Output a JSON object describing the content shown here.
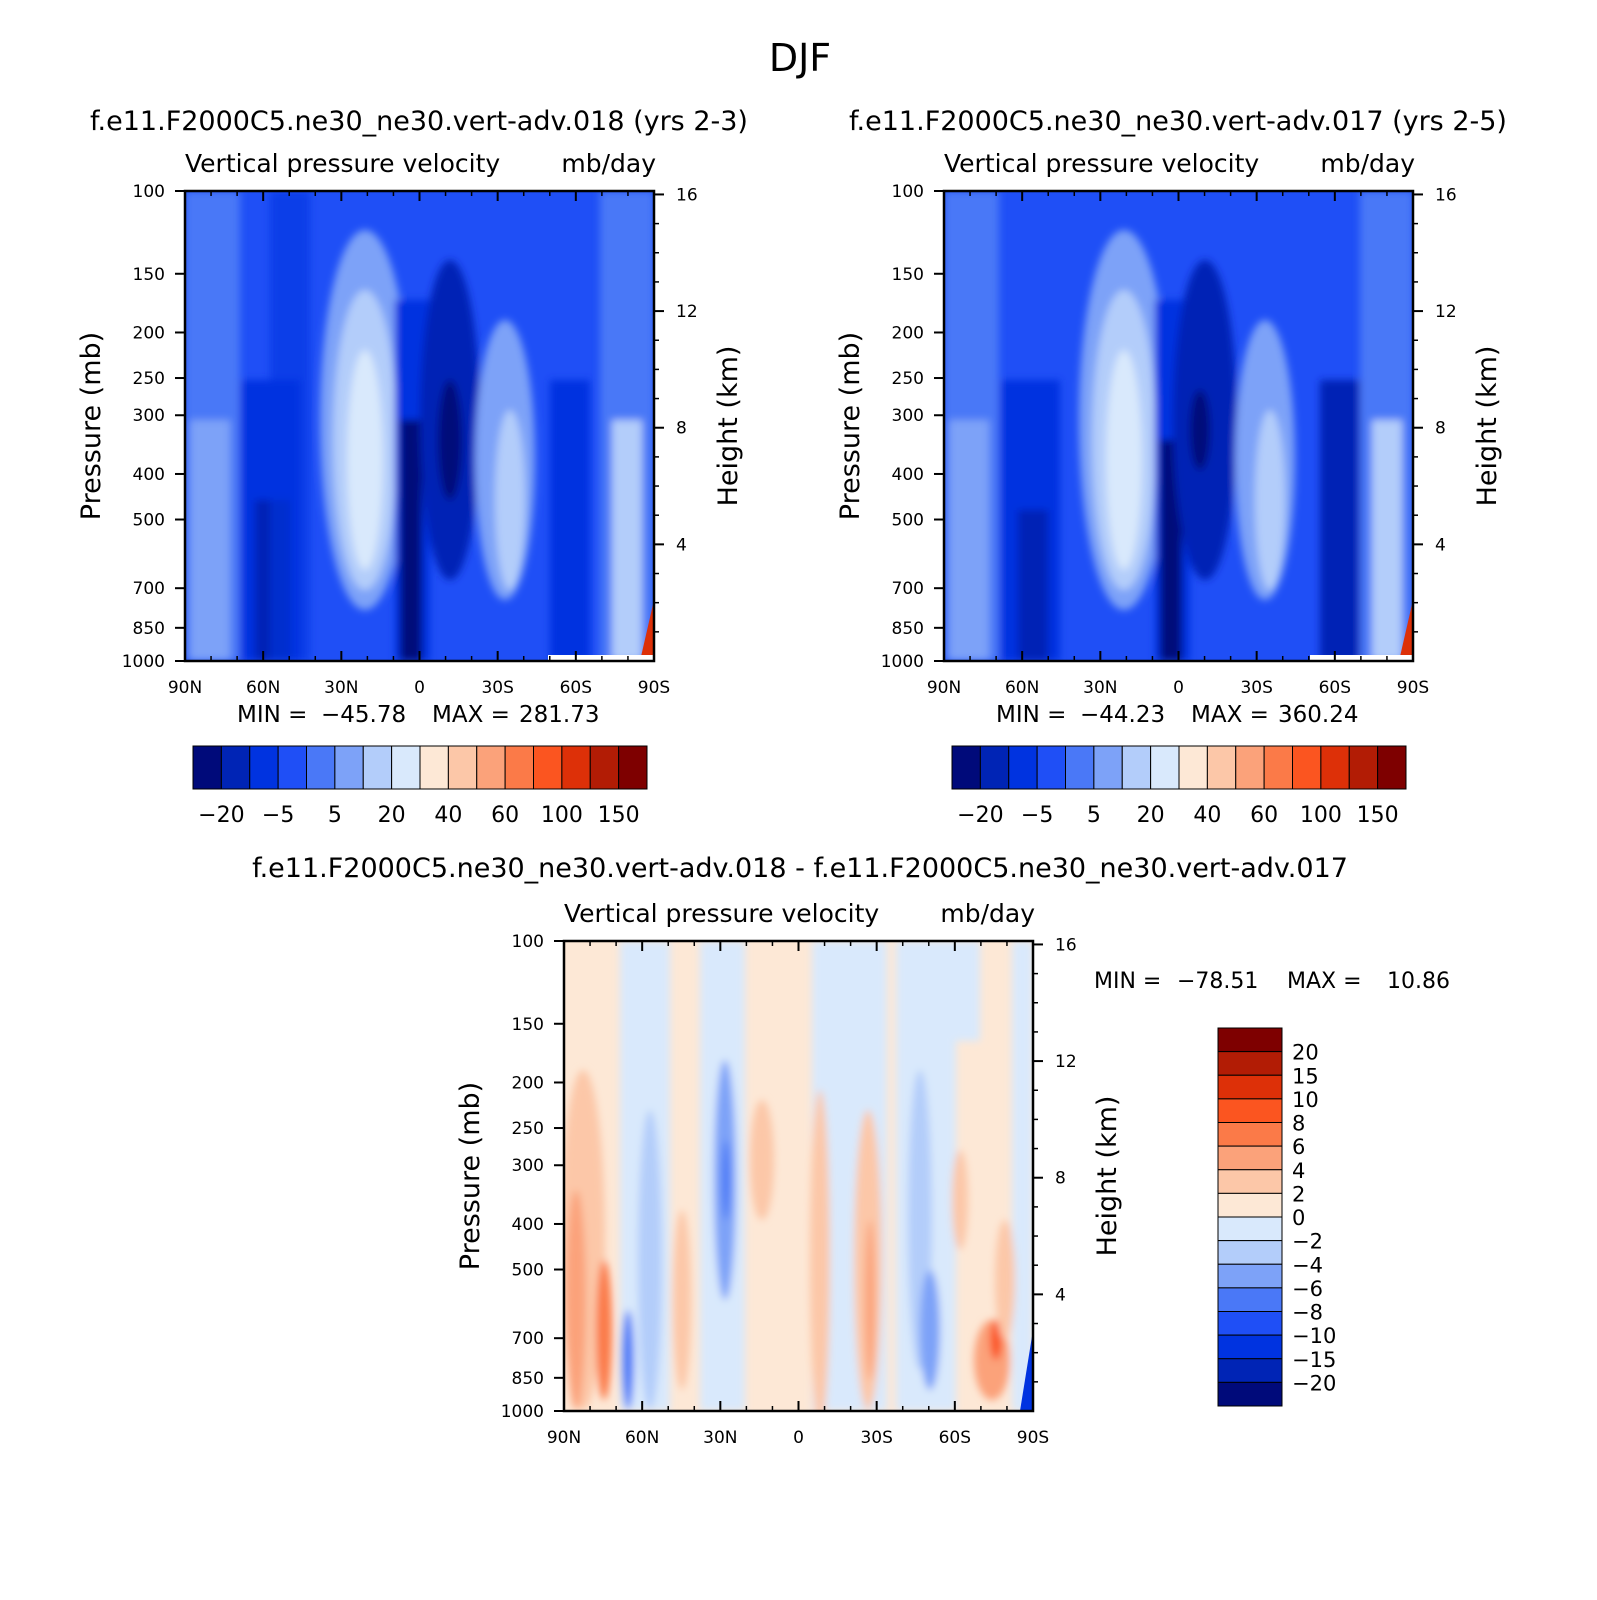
{
  "page_title": "DJF",
  "colors": {
    "main_blues": [
      "#000a7a",
      "#0024b5",
      "#0033e0",
      "#1f4ff6",
      "#4a78f7",
      "#7da2f8",
      "#b3cdfa",
      "#d9e9fc"
    ],
    "main_reds": [
      "#fde8d6",
      "#fcc7a8",
      "#fba27a",
      "#fb7a48",
      "#fb5520",
      "#dd3008",
      "#b21c05",
      "#7e0000"
    ],
    "diff_scale": [
      "#000a7a",
      "#0024b5",
      "#0033e0",
      "#1f4ff6",
      "#4a78f7",
      "#7da2f8",
      "#b3cdfa",
      "#d9e9fc",
      "#fde8d6",
      "#fcc7a8",
      "#fba27a",
      "#fb7a48",
      "#fb5520",
      "#dd3008",
      "#b21c05",
      "#7e0000"
    ]
  },
  "chart_data": [
    {
      "type": "heatmap",
      "case_title": "f.e11.F2000C5.ne30_ne30.vert-adv.018 (yrs 2-3)",
      "title": "Vertical pressure velocity",
      "units": "mb/day",
      "ylabel": "Pressure (mb)",
      "ylabel_right": "Height (km)",
      "x_ticks": [
        "90N",
        "60N",
        "30N",
        "0",
        "30S",
        "60S",
        "90S"
      ],
      "y_ticks": [
        100,
        150,
        200,
        250,
        300,
        400,
        500,
        700,
        850,
        1000
      ],
      "y_right_ticks": [
        16,
        12,
        8,
        4
      ],
      "min_label": "MIN =",
      "min": "-45.78",
      "max_label": "MAX =",
      "max": "281.73",
      "colorbar_labels": [
        "-20",
        "-5",
        "5",
        "20",
        "40",
        "60",
        "100",
        "150"
      ]
    },
    {
      "type": "heatmap",
      "case_title": "f.e11.F2000C5.ne30_ne30.vert-adv.017 (yrs 2-5)",
      "title": "Vertical pressure velocity",
      "units": "mb/day",
      "ylabel": "Pressure (mb)",
      "ylabel_right": "Height (km)",
      "x_ticks": [
        "90N",
        "60N",
        "30N",
        "0",
        "30S",
        "60S",
        "90S"
      ],
      "y_ticks": [
        100,
        150,
        200,
        250,
        300,
        400,
        500,
        700,
        850,
        1000
      ],
      "y_right_ticks": [
        16,
        12,
        8,
        4
      ],
      "min_label": "MIN =",
      "min": "-44.23",
      "max_label": "MAX =",
      "max": "360.24",
      "colorbar_labels": [
        "-20",
        "-5",
        "5",
        "20",
        "40",
        "60",
        "100",
        "150"
      ]
    },
    {
      "type": "heatmap",
      "case_title": "f.e11.F2000C5.ne30_ne30.vert-adv.018 - f.e11.F2000C5.ne30_ne30.vert-adv.017",
      "title": "Vertical pressure velocity",
      "units": "mb/day",
      "ylabel": "Pressure (mb)",
      "ylabel_right": "Height (km)",
      "x_ticks": [
        "90N",
        "60N",
        "30N",
        "0",
        "30S",
        "60S",
        "90S"
      ],
      "y_ticks": [
        100,
        150,
        200,
        250,
        300,
        400,
        500,
        700,
        850,
        1000
      ],
      "y_right_ticks": [
        16,
        12,
        8,
        4
      ],
      "min_label": "MIN =",
      "min": "-78.51",
      "max_label": "MAX =",
      "max": "10.86",
      "colorbar_labels": [
        "20",
        "15",
        "10",
        "8",
        "6",
        "4",
        "2",
        "0",
        "-2",
        "-4",
        "-6",
        "-8",
        "-10",
        "-15",
        "-20"
      ]
    }
  ]
}
